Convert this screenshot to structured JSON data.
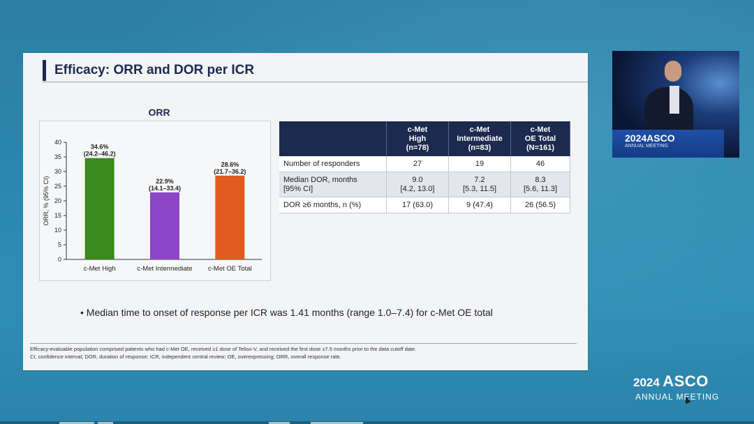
{
  "slide": {
    "title": "Efficacy: ORR and DOR per ICR",
    "bullet": "Median time to onset of response per ICR was 1.41 months (range 1.0–7.4) for c-Met OE total",
    "footnotes": [
      "Efficacy-evaluable population comprised patients who had c-Met OE, received ≥1 dose of Teliso-V, and received the first dose ≥7.5 months prior to the data cutoff date.",
      "CI, confidence interval; DOR, duration of response; ICR, independent central review; OE, overexpressing; ORR, overall response rate."
    ]
  },
  "chart_data": {
    "type": "bar",
    "title": "ORR",
    "ylabel": "ORR, % (95% CI)",
    "xlabel": "",
    "ylim": [
      0,
      40
    ],
    "yticks": [
      0,
      5,
      10,
      15,
      20,
      25,
      30,
      35,
      40
    ],
    "grid": false,
    "categories": [
      "c-Met High",
      "c-Met Intermediate",
      "c-Met OE Total"
    ],
    "values": [
      34.6,
      22.9,
      28.6
    ],
    "value_labels": [
      "34.6%",
      "22.9%",
      "28.6%"
    ],
    "ci_labels": [
      "(24.2–46.2)",
      "(14.1–33.4)",
      "(21.7–36.2)"
    ],
    "colors": [
      "#3a8a1e",
      "#8a46c6",
      "#e05b1e"
    ]
  },
  "table": {
    "headers": [
      "",
      "c-Met\nHigh\n(n=78)",
      "c-Met\nIntermediate\n(n=83)",
      "c-Met\nOE Total\n(N=161)"
    ],
    "rows": [
      [
        "Number of responders",
        "27",
        "19",
        "46"
      ],
      [
        "Median DOR, months\n[95% CI]",
        "9.0\n[4.2, 13.0]",
        "7.2\n[5.3, 11.5]",
        "8.3\n[5.6, 11.3]"
      ],
      [
        "DOR ≥6 months, n (%)",
        "17 (63.0)",
        "9 (47.4)",
        "26 (56.5)"
      ]
    ]
  },
  "video": {
    "podium_logo": "2024ASCO",
    "podium_sub": "ANNUAL MEETING"
  },
  "branding": {
    "year": "2024",
    "name": "ASCO",
    "sub": "ANNUAL MEETING"
  },
  "icons": {
    "cursor": "cursor-arrow-icon"
  }
}
